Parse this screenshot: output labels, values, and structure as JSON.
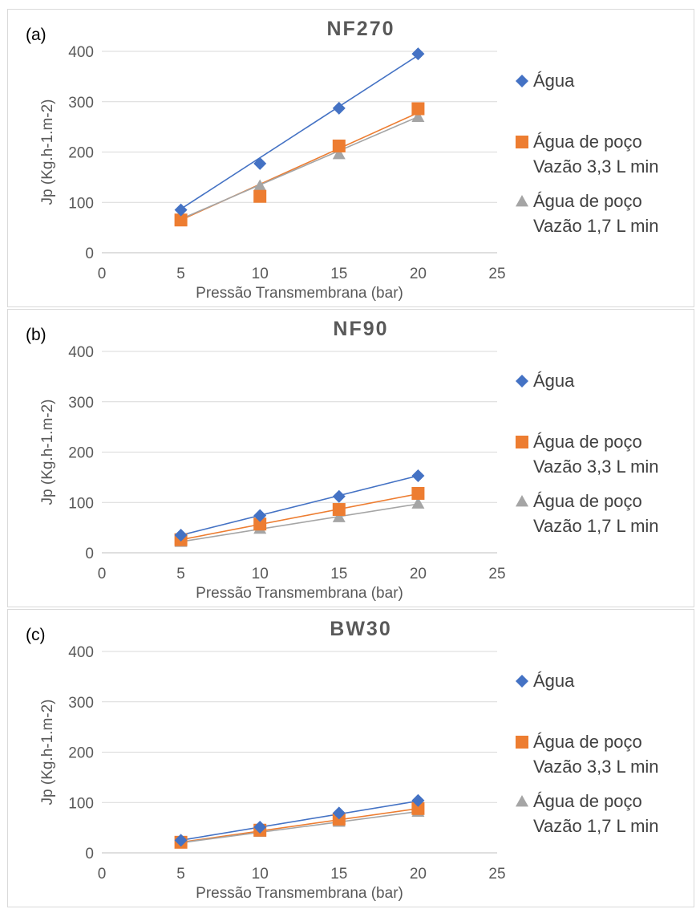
{
  "chart_data": [
    {
      "type": "scatter",
      "panel_label": "(a)",
      "title": "NF270",
      "xlabel": "Pressão Transmembrana (bar)",
      "ylabel": "Jp (Kg.h-1.m-2)",
      "xlim": [
        0,
        25
      ],
      "ylim": [
        0,
        400
      ],
      "xticks": [
        "0",
        "5",
        "10",
        "15",
        "20",
        "25"
      ],
      "yticks": [
        "0",
        "100",
        "200",
        "300",
        "400"
      ],
      "grid": "horizontal",
      "legend_position": "right",
      "series": [
        {
          "name": "Água",
          "legend_lines": [
            "Água"
          ],
          "color": "#4472c4",
          "marker": "diamond",
          "x": [
            5,
            10,
            15,
            20
          ],
          "y": [
            85,
            177,
            287,
            395
          ],
          "trend": [
            [
              5,
              87
            ],
            [
              20,
              392
            ]
          ]
        },
        {
          "name": "Água de poço Vazão 3,3 L min",
          "legend_lines": [
            "Água de poço",
            "Vazão 3,3 L min"
          ],
          "color": "#ed7d31",
          "marker": "square",
          "x": [
            5,
            10,
            15,
            20
          ],
          "y": [
            65,
            112,
            212,
            286
          ],
          "trend": [
            [
              5,
              65
            ],
            [
              20,
              278
            ]
          ]
        },
        {
          "name": "Água de poço Vazão 1,7 L min",
          "legend_lines": [
            "Água de poço",
            "Vazão 1,7 L min"
          ],
          "color": "#a5a5a5",
          "marker": "triangle",
          "x": [
            5,
            10,
            15,
            20
          ],
          "y": [
            66,
            133,
            196,
            270
          ],
          "trend": [
            [
              5,
              67
            ],
            [
              20,
              270
            ]
          ]
        }
      ]
    },
    {
      "type": "scatter",
      "panel_label": "(b)",
      "title": "NF90",
      "xlabel": "Pressão Transmembrana (bar)",
      "ylabel": "Jp (Kg.h-1.m-2)",
      "xlim": [
        0,
        25
      ],
      "ylim": [
        0,
        400
      ],
      "xticks": [
        "0",
        "5",
        "10",
        "15",
        "20",
        "25"
      ],
      "yticks": [
        "0",
        "100",
        "200",
        "300",
        "400"
      ],
      "grid": "horizontal",
      "legend_position": "right",
      "series": [
        {
          "name": "Água",
          "legend_lines": [
            "Água"
          ],
          "color": "#4472c4",
          "marker": "diamond",
          "x": [
            5,
            10,
            15,
            20
          ],
          "y": [
            35,
            74,
            112,
            153
          ],
          "trend": [
            [
              5,
              35
            ],
            [
              20,
              153
            ]
          ]
        },
        {
          "name": "Água de poço Vazão 3,3 L min",
          "legend_lines": [
            "Água de poço",
            "Vazão 3,3 L min"
          ],
          "color": "#ed7d31",
          "marker": "square",
          "x": [
            5,
            10,
            15,
            20
          ],
          "y": [
            26,
            57,
            86,
            118
          ],
          "trend": [
            [
              5,
              26
            ],
            [
              20,
              117
            ]
          ]
        },
        {
          "name": "Água de poço Vazão 1,7 L min",
          "legend_lines": [
            "Água de poço",
            "Vazão 1,7 L min"
          ],
          "color": "#a5a5a5",
          "marker": "triangle",
          "x": [
            5,
            10,
            15,
            20
          ],
          "y": [
            22,
            48,
            71,
            98
          ],
          "trend": [
            [
              5,
              22
            ],
            [
              20,
              97
            ]
          ]
        }
      ]
    },
    {
      "type": "scatter",
      "panel_label": "(c)",
      "title": "BW30",
      "xlabel": "Pressão Transmembrana (bar)",
      "ylabel": "Jp (Kg.h-1.m-2)",
      "xlim": [
        0,
        25
      ],
      "ylim": [
        0,
        400
      ],
      "xticks": [
        "0",
        "5",
        "10",
        "15",
        "20",
        "25"
      ],
      "yticks": [
        "0",
        "100",
        "200",
        "300",
        "400"
      ],
      "grid": "horizontal",
      "legend_position": "right",
      "series": [
        {
          "name": "Água",
          "legend_lines": [
            "Água"
          ],
          "color": "#4472c4",
          "marker": "diamond",
          "x": [
            5,
            10,
            15,
            20
          ],
          "y": [
            25,
            51,
            79,
            104
          ],
          "trend": [
            [
              5,
              25
            ],
            [
              20,
              103
            ]
          ]
        },
        {
          "name": "Água de poço Vazão 3,3 L min",
          "legend_lines": [
            "Água de poço",
            "Vazão 3,3 L min"
          ],
          "color": "#ed7d31",
          "marker": "square",
          "x": [
            5,
            10,
            15,
            20
          ],
          "y": [
            21,
            45,
            67,
            88
          ],
          "trend": [
            [
              5,
              21
            ],
            [
              20,
              88
            ]
          ]
        },
        {
          "name": "Água de poço Vazão 1,7 L min",
          "legend_lines": [
            "Água de poço",
            "Vazão 1,7 L min"
          ],
          "color": "#a5a5a5",
          "marker": "triangle",
          "x": [
            5,
            10,
            15,
            20
          ],
          "y": [
            19,
            42,
            62,
            82
          ],
          "trend": [
            [
              5,
              20
            ],
            [
              20,
              82
            ]
          ]
        }
      ]
    }
  ]
}
